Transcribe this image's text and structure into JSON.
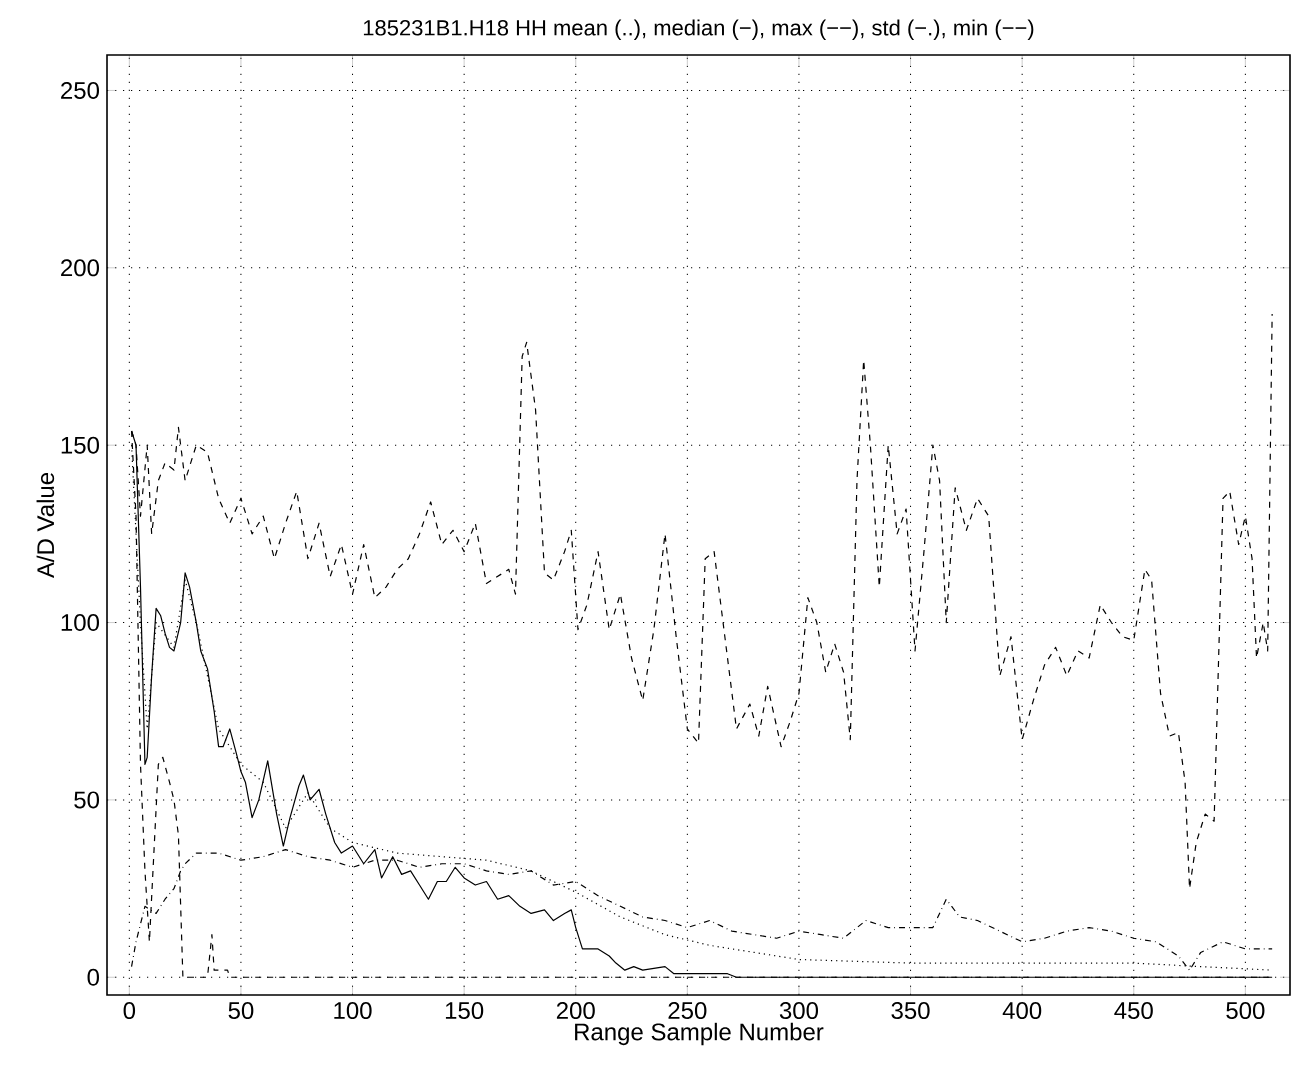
{
  "chart_data": {
    "type": "line",
    "title": "185231B1.H18 HH mean (..), median (−), max (−−), std (−.), min (−−)",
    "xlabel": "Range Sample Number",
    "ylabel": "A/D Value",
    "xlim": [
      -10,
      520
    ],
    "ylim": [
      -5,
      260
    ],
    "xticks": [
      0,
      50,
      100,
      150,
      200,
      250,
      300,
      350,
      400,
      450,
      500
    ],
    "yticks": [
      0,
      50,
      100,
      150,
      200,
      250
    ],
    "grid": true,
    "marker": "none",
    "series": [
      {
        "color": "#000000",
        "line_style": "dotted",
        "x": [
          1,
          5,
          8,
          12,
          20,
          25,
          30,
          40,
          50,
          60,
          70,
          80,
          90,
          100,
          120,
          140,
          160,
          180,
          200,
          220,
          240,
          260,
          280,
          300,
          350,
          400,
          450,
          480,
          512
        ],
        "values": [
          150,
          100,
          70,
          100,
          93,
          112,
          100,
          70,
          60,
          55,
          42,
          52,
          42,
          38,
          35,
          34,
          33,
          30,
          24,
          17,
          12,
          9,
          7,
          5,
          4,
          4,
          4,
          3,
          2
        ]
      },
      {
        "color": "#000000",
        "line_style": "solid",
        "x": [
          1,
          3,
          5,
          7,
          8,
          10,
          12,
          14,
          16,
          18,
          20,
          23,
          25,
          27,
          30,
          32,
          35,
          38,
          40,
          42,
          45,
          48,
          50,
          52,
          55,
          58,
          62,
          66,
          69,
          72,
          76,
          78,
          81,
          85,
          88,
          92,
          95,
          100,
          105,
          110,
          113,
          118,
          122,
          126,
          130,
          134,
          138,
          142,
          146,
          150,
          155,
          160,
          165,
          170,
          175,
          180,
          186,
          190,
          195,
          198,
          200,
          203,
          210,
          215,
          218,
          222,
          226,
          230,
          240,
          244,
          250,
          268,
          272,
          512
        ],
        "values": [
          154,
          150,
          110,
          60,
          62,
          85,
          104,
          102,
          97,
          93,
          92,
          100,
          114,
          110,
          100,
          92,
          87,
          75,
          65,
          65,
          70,
          63,
          58,
          55,
          45,
          50,
          61,
          46,
          37,
          45,
          54,
          57,
          50,
          53,
          46,
          38,
          35,
          37,
          32,
          36,
          28,
          34,
          29,
          30,
          26,
          22,
          27,
          27,
          31,
          28,
          26,
          27,
          22,
          23,
          20,
          18,
          19,
          16,
          18,
          19,
          14,
          8,
          8,
          6,
          4,
          2,
          3,
          2,
          3,
          1,
          1,
          1,
          0,
          0
        ]
      },
      {
        "color": "#000000",
        "line_style": "dashed",
        "x": [
          1,
          3,
          5,
          8,
          10,
          13,
          16,
          20,
          22,
          25,
          30,
          35,
          40,
          45,
          50,
          55,
          60,
          65,
          70,
          75,
          80,
          85,
          90,
          95,
          100,
          105,
          110,
          115,
          120,
          125,
          130,
          135,
          140,
          145,
          150,
          155,
          160,
          165,
          170,
          173,
          176,
          178,
          182,
          186,
          190,
          195,
          198,
          201,
          205,
          210,
          215,
          220,
          225,
          230,
          235,
          240,
          245,
          250,
          255,
          258,
          262,
          268,
          272,
          278,
          282,
          286,
          292,
          296,
          300,
          304,
          308,
          312,
          316,
          320,
          323,
          326,
          329,
          332,
          336,
          340,
          344,
          348,
          352,
          356,
          360,
          363,
          366,
          370,
          375,
          380,
          385,
          390,
          395,
          400,
          405,
          410,
          415,
          420,
          425,
          430,
          435,
          440,
          445,
          450,
          455,
          458,
          462,
          466,
          470,
          473,
          475,
          478,
          482,
          486,
          490,
          493,
          497,
          500,
          503,
          505,
          508,
          510,
          512
        ],
        "values": [
          154,
          150,
          130,
          150,
          125,
          140,
          145,
          143,
          155,
          140,
          150,
          148,
          135,
          128,
          135,
          125,
          130,
          118,
          128,
          137,
          118,
          128,
          113,
          122,
          108,
          122,
          107,
          110,
          115,
          118,
          125,
          134,
          122,
          126,
          120,
          128,
          111,
          113,
          115,
          108,
          175,
          179,
          160,
          114,
          112,
          120,
          126,
          98,
          105,
          120,
          98,
          108,
          90,
          78,
          98,
          125,
          96,
          70,
          66,
          118,
          120,
          90,
          70,
          77,
          68,
          82,
          65,
          72,
          80,
          107,
          100,
          86,
          94,
          86,
          67,
          140,
          174,
          150,
          110,
          150,
          125,
          132,
          92,
          120,
          150,
          140,
          100,
          138,
          126,
          135,
          130,
          85,
          96,
          67,
          78,
          88,
          93,
          85,
          92,
          90,
          105,
          100,
          96,
          95,
          115,
          112,
          80,
          68,
          69,
          55,
          25,
          38,
          46,
          44,
          135,
          137,
          122,
          130,
          118,
          90,
          100,
          92,
          187
        ]
      },
      {
        "color": "#000000",
        "line_style": "dashdot",
        "x": [
          1,
          3,
          7,
          12,
          16,
          20,
          23,
          25,
          30,
          40,
          50,
          60,
          70,
          80,
          90,
          100,
          110,
          120,
          130,
          140,
          150,
          160,
          170,
          180,
          190,
          200,
          210,
          220,
          230,
          240,
          250,
          260,
          270,
          280,
          290,
          300,
          310,
          320,
          330,
          340,
          350,
          360,
          366,
          372,
          380,
          390,
          400,
          410,
          420,
          430,
          440,
          450,
          460,
          470,
          475,
          480,
          490,
          500,
          512
        ],
        "values": [
          3,
          10,
          20,
          18,
          22,
          25,
          30,
          32,
          35,
          35,
          33,
          34,
          36,
          34,
          33,
          31,
          33,
          33,
          31,
          32,
          32,
          30,
          29,
          30,
          26,
          27,
          23,
          20,
          17,
          16,
          14,
          16,
          13,
          12,
          11,
          13,
          12,
          11,
          16,
          14,
          14,
          14,
          22,
          17,
          16,
          13,
          10,
          11,
          13,
          14,
          13,
          11,
          10,
          6,
          2,
          7,
          10,
          8,
          8
        ]
      },
      {
        "color": "#000000",
        "line_style": "dashed",
        "x": [
          1,
          3,
          5,
          7,
          9,
          11,
          13,
          15,
          18,
          20,
          22,
          24,
          35,
          37,
          38,
          44,
          45,
          512
        ],
        "values": [
          154,
          130,
          60,
          30,
          10,
          35,
          60,
          62,
          55,
          50,
          40,
          0,
          0,
          12,
          2,
          2,
          0,
          0
        ]
      }
    ]
  }
}
